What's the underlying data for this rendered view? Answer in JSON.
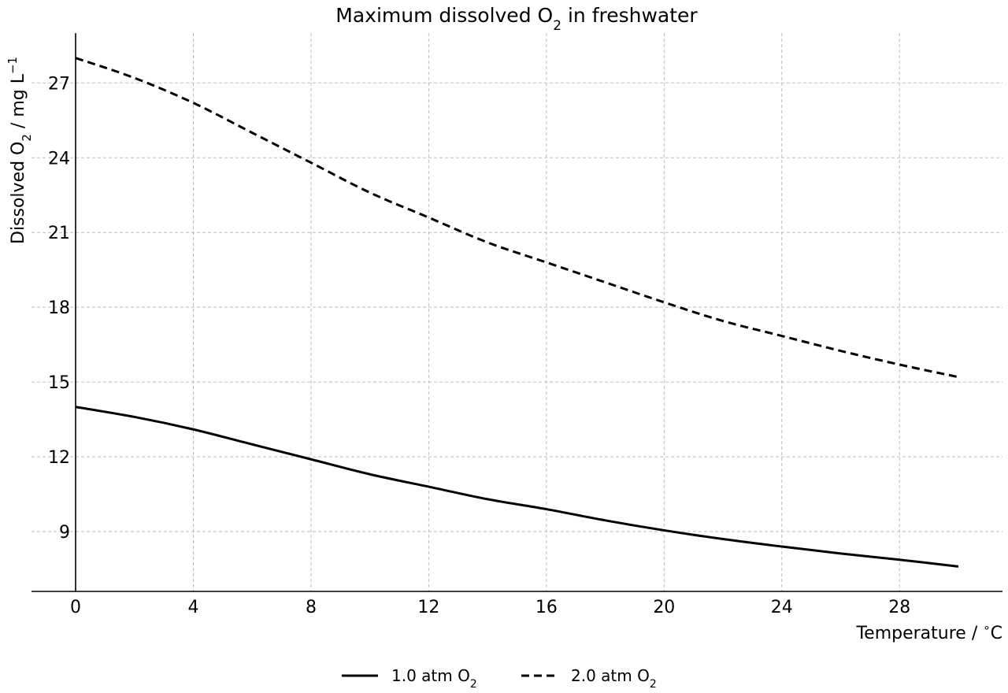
{
  "chart_data": {
    "type": "line",
    "title": "Maximum dissolved O",
    "title_sub": "2",
    "title_tail": " in freshwater",
    "xlabel": "Temperature / ",
    "xlabel_sup": "∘",
    "xlabel_tail": "C",
    "ylabel": "Dissolved O",
    "ylabel_sub": "2",
    "ylabel_mid": " / mg L",
    "ylabel_sup": "−1",
    "xlim": [
      -1.5,
      31.5
    ],
    "ylim": [
      6.6,
      29
    ],
    "x_ticks": [
      "0",
      "4",
      "8",
      "12",
      "16",
      "20",
      "24",
      "28"
    ],
    "y_ticks": [
      "9",
      "12",
      "15",
      "18",
      "21",
      "24",
      "27"
    ],
    "grid": true,
    "legend_position": "bottom-center",
    "x": [
      0,
      2,
      4,
      6,
      8,
      10,
      12,
      14,
      16,
      18,
      20,
      22,
      24,
      26,
      28,
      30
    ],
    "series": [
      {
        "name_main": "1.0 atm O",
        "name_sub": "2",
        "line_style": "solid",
        "values": [
          14.0,
          13.6,
          13.1,
          12.5,
          11.9,
          11.3,
          10.8,
          10.3,
          9.9,
          9.45,
          9.05,
          8.7,
          8.4,
          8.12,
          7.87,
          7.6
        ]
      },
      {
        "name_main": "2.0 atm O",
        "name_sub": "2",
        "line_style": "dashed",
        "values": [
          28.0,
          27.2,
          26.2,
          25.0,
          23.8,
          22.6,
          21.6,
          20.6,
          19.8,
          19.0,
          18.2,
          17.45,
          16.85,
          16.25,
          15.7,
          15.2
        ]
      }
    ]
  }
}
